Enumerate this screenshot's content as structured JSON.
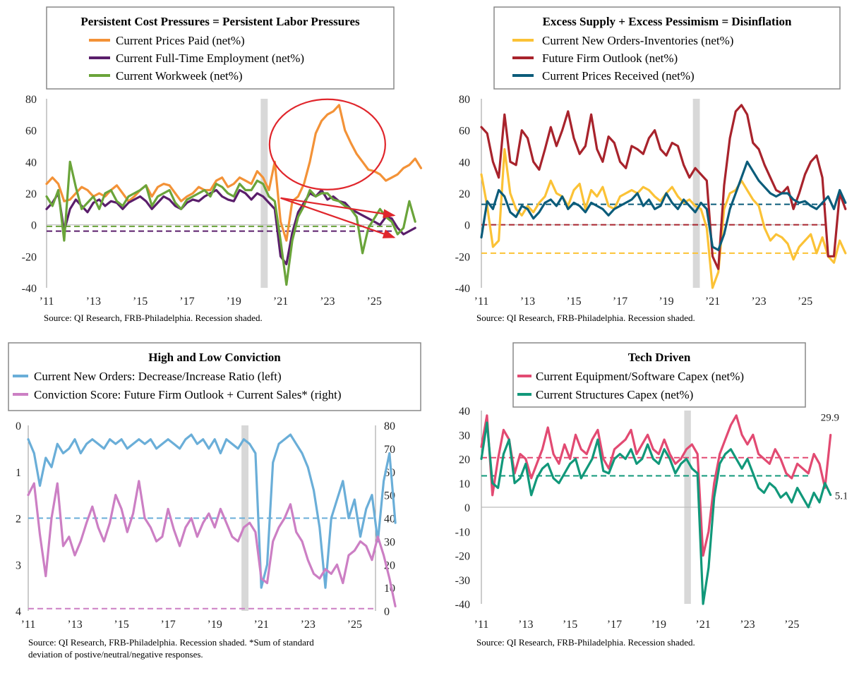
{
  "colors": {
    "orange": "#f39237",
    "purple": "#5a1e6b",
    "green": "#6aa43a",
    "yellow": "#fbc236",
    "darkred": "#a8232c",
    "teal": "#0b5c7a",
    "lightblue": "#6aaed8",
    "pink": "#cc7fc4",
    "crimson": "#e24a72",
    "seagreen": "#11987a",
    "annotation": "#e0262c",
    "recession": "#d8d8d8"
  },
  "chart_data": [
    {
      "id": "labor",
      "type": "line",
      "title": "Persistent Cost Pressures = Persistent Labor Pressures",
      "source": "Source: QI Research, FRB-Philadelphia. Recession shaded.",
      "x_tick_labels": [
        "’11",
        "’13",
        "’15",
        "’17",
        "’19",
        "’21",
        "’23",
        "’25"
      ],
      "x_range": [
        2011.0,
        2025.9
      ],
      "ylim": [
        -40,
        80
      ],
      "y_ticks": [
        -40,
        -20,
        0,
        20,
        40,
        60,
        80
      ],
      "recession": [
        2020.15,
        2020.45
      ],
      "series": [
        {
          "name": "Current Prices Paid (net%)",
          "color": "orange",
          "step": 0.25,
          "values": [
            26,
            30,
            26,
            15,
            16,
            20,
            24,
            22,
            18,
            20,
            18,
            22,
            25,
            20,
            15,
            18,
            22,
            25,
            18,
            24,
            26,
            25,
            20,
            15,
            18,
            20,
            24,
            22,
            22,
            28,
            30,
            24,
            26,
            30,
            28,
            26,
            34,
            30,
            22,
            40,
            2,
            -10,
            15,
            18,
            26,
            40,
            58,
            66,
            70,
            72,
            76,
            60,
            52,
            45,
            40,
            35,
            34,
            32,
            28,
            30,
            32,
            36,
            38,
            42,
            36
          ]
        },
        {
          "name": "Current Full-Time Employment (net%)",
          "color": "purple",
          "step": 0.25,
          "values": [
            10,
            14,
            20,
            -4,
            10,
            16,
            12,
            8,
            14,
            16,
            12,
            15,
            14,
            10,
            14,
            16,
            18,
            15,
            10,
            14,
            18,
            16,
            12,
            10,
            14,
            16,
            15,
            18,
            20,
            22,
            18,
            16,
            15,
            22,
            20,
            16,
            20,
            18,
            14,
            10,
            -20,
            -25,
            -5,
            8,
            14,
            20,
            18,
            22,
            16,
            18,
            15,
            14,
            10,
            8,
            6,
            4,
            2,
            0,
            5,
            4,
            -2,
            -6,
            -4,
            -2
          ]
        },
        {
          "name": "Current Workweek (net%)",
          "color": "green",
          "step": 0.25,
          "values": [
            18,
            12,
            22,
            -10,
            40,
            24,
            10,
            14,
            18,
            10,
            20,
            22,
            15,
            12,
            18,
            20,
            22,
            25,
            12,
            18,
            20,
            22,
            14,
            10,
            16,
            18,
            20,
            22,
            18,
            26,
            24,
            20,
            18,
            26,
            22,
            22,
            28,
            26,
            18,
            15,
            -10,
            -38,
            -10,
            5,
            12,
            22,
            18,
            20,
            20,
            16,
            15,
            12,
            10,
            5,
            -18,
            -2,
            4,
            10,
            5,
            2,
            -6,
            -2,
            15,
            2
          ]
        }
      ],
      "dashed": [
        {
          "series": "Current Workweek (net%)",
          "value": -1,
          "color": "green"
        },
        {
          "series": "Current Full-Time Employment (net%)",
          "value": -4,
          "color": "purple"
        }
      ],
      "annotations": [
        "ellipse around 2021-2025 prices paid",
        "downward arrows 2021-2025"
      ]
    },
    {
      "id": "disinflation",
      "type": "line",
      "title": "Excess Supply + Excess Pessimism = Disinflation",
      "source": "Source: QI Research, FRB-Philadelphia. Recession shaded.",
      "x_tick_labels": [
        "’11",
        "’13",
        "’15",
        "’17",
        "’19",
        "’21",
        "’23",
        "’25"
      ],
      "x_range": [
        2011.0,
        2025.9
      ],
      "ylim": [
        -40,
        80
      ],
      "y_ticks": [
        -40,
        -20,
        0,
        20,
        40,
        60,
        80
      ],
      "recession": [
        2020.15,
        2020.45
      ],
      "series": [
        {
          "name": "Current New Orders-Inventories (net%)",
          "color": "yellow",
          "step": 0.25,
          "values": [
            32,
            12,
            -14,
            -10,
            48,
            20,
            10,
            6,
            12,
            8,
            14,
            18,
            28,
            20,
            18,
            12,
            22,
            26,
            10,
            22,
            18,
            24,
            12,
            10,
            18,
            20,
            22,
            20,
            24,
            22,
            18,
            15,
            20,
            24,
            18,
            14,
            16,
            12,
            10,
            -2,
            -40,
            -30,
            10,
            20,
            22,
            28,
            22,
            16,
            12,
            -2,
            -10,
            -6,
            -8,
            -12,
            -22,
            -14,
            -10,
            -6,
            -18,
            -8,
            -20,
            -24,
            -10,
            -18
          ]
        },
        {
          "name": "Future Firm Outlook (net%)",
          "color": "darkred",
          "step": 0.25,
          "values": [
            62,
            58,
            40,
            30,
            70,
            40,
            38,
            60,
            55,
            40,
            35,
            48,
            62,
            50,
            60,
            72,
            55,
            45,
            50,
            70,
            48,
            40,
            56,
            52,
            40,
            36,
            50,
            48,
            45,
            55,
            60,
            48,
            44,
            52,
            50,
            38,
            30,
            36,
            32,
            28,
            -20,
            -28,
            25,
            55,
            72,
            76,
            70,
            52,
            48,
            38,
            30,
            22,
            20,
            24,
            10,
            20,
            32,
            40,
            44,
            30,
            -20,
            -20,
            20,
            10
          ]
        },
        {
          "name": "Current Prices Received (net%)",
          "color": "teal",
          "step": 0.25,
          "values": [
            -8,
            15,
            10,
            22,
            18,
            8,
            5,
            12,
            10,
            4,
            8,
            14,
            16,
            12,
            18,
            10,
            14,
            12,
            8,
            14,
            12,
            10,
            6,
            10,
            12,
            14,
            16,
            20,
            12,
            16,
            10,
            12,
            20,
            14,
            10,
            16,
            12,
            8,
            14,
            10,
            -14,
            -16,
            -6,
            10,
            20,
            30,
            40,
            34,
            28,
            24,
            20,
            18,
            20,
            20,
            16,
            14,
            15,
            12,
            10,
            14,
            18,
            10,
            22,
            14
          ]
        }
      ],
      "dashed": [
        {
          "series": "Current Prices Received (net%)",
          "value": 13,
          "color": "teal"
        },
        {
          "series": "Future Firm Outlook (net%)",
          "value": 0,
          "color": "darkred"
        },
        {
          "series": "Current New Orders-Inventories (net%)",
          "value": -18,
          "color": "yellow"
        }
      ]
    },
    {
      "id": "conviction",
      "type": "line",
      "title": "High and Low Conviction",
      "source": "Source: QI Research, FRB-Philadelphia. Recession shaded. *Sum of standard",
      "source_line2": "deviation of postive/neutral/negative responses.",
      "x_tick_labels": [
        "’11",
        "’13",
        "’15",
        "’17",
        "’19",
        "’21",
        "’23",
        "’25"
      ],
      "x_range": [
        2011.0,
        2025.9
      ],
      "ylim_left": [
        0,
        4
      ],
      "ylim_left_inverted": true,
      "y_ticks_left": [
        0,
        1,
        2,
        3,
        4
      ],
      "ylim_right": [
        0,
        80
      ],
      "y_ticks_right": [
        0,
        10,
        20,
        30,
        40,
        50,
        60,
        70,
        80
      ],
      "recession": [
        2020.15,
        2020.45
      ],
      "series": [
        {
          "name": "Current New Orders: Decrease/Increase Ratio (left)",
          "color": "lightblue",
          "axis": "left",
          "step": 0.25,
          "values": [
            0.3,
            0.6,
            1.3,
            0.7,
            0.9,
            0.4,
            0.6,
            0.5,
            0.3,
            0.6,
            0.4,
            0.3,
            0.4,
            0.5,
            0.3,
            0.4,
            0.3,
            0.5,
            0.4,
            0.3,
            0.4,
            0.3,
            0.5,
            0.4,
            0.3,
            0.4,
            0.5,
            0.3,
            0.2,
            0.4,
            0.3,
            0.5,
            0.3,
            0.6,
            0.3,
            0.4,
            0.5,
            0.3,
            0.4,
            0.6,
            3.5,
            3.0,
            0.8,
            0.4,
            0.3,
            0.2,
            0.4,
            0.6,
            0.9,
            1.4,
            2.2,
            3.5,
            2.0,
            1.6,
            1.2,
            2.0,
            1.6,
            2.4,
            1.8,
            1.5,
            2.5,
            1.2,
            0.6,
            2.1
          ]
        },
        {
          "name": "Conviction Score: Future Firm Outlook + Current Sales* (right)",
          "color": "pink",
          "axis": "right",
          "step": 0.25,
          "values": [
            50,
            55,
            33,
            15,
            40,
            55,
            28,
            32,
            24,
            30,
            38,
            45,
            36,
            30,
            38,
            50,
            44,
            34,
            42,
            56,
            40,
            36,
            30,
            32,
            44,
            35,
            28,
            36,
            40,
            32,
            38,
            42,
            36,
            44,
            38,
            32,
            30,
            36,
            38,
            34,
            14,
            12,
            30,
            36,
            40,
            46,
            34,
            30,
            22,
            16,
            14,
            18,
            16,
            20,
            12,
            24,
            26,
            30,
            28,
            22,
            32,
            24,
            14,
            2
          ]
        }
      ],
      "dashed": [
        {
          "series": "Current New Orders: Decrease/Increase Ratio (left)",
          "value": 2.0,
          "axis": "left",
          "color": "lightblue"
        },
        {
          "series": "Conviction Score: Future Firm Outlook + Current Sales* (right)",
          "value": 1,
          "axis": "right",
          "color": "pink"
        }
      ]
    },
    {
      "id": "capex",
      "type": "line",
      "title": "Tech Driven",
      "source": "Source: QI Research, FRB-Philadelphia. Recession shaded.",
      "x_tick_labels": [
        "’11",
        "’13",
        "’15",
        "’17",
        "’19",
        "’21",
        "’23",
        "’25"
      ],
      "x_range": [
        2011.0,
        2025.9
      ],
      "ylim": [
        -40,
        40
      ],
      "y_ticks": [
        -40,
        -30,
        -20,
        -10,
        0,
        10,
        20,
        30,
        40
      ],
      "recession": [
        2020.15,
        2020.45
      ],
      "series": [
        {
          "name": "Current Equipment/Software Capex (net%)",
          "color": "crimson",
          "step": 0.25,
          "values": [
            25,
            38,
            5,
            20,
            32,
            28,
            14,
            22,
            20,
            12,
            18,
            24,
            33,
            22,
            18,
            26,
            20,
            30,
            24,
            22,
            28,
            32,
            20,
            16,
            24,
            26,
            28,
            32,
            22,
            26,
            30,
            24,
            22,
            28,
            22,
            18,
            20,
            24,
            26,
            22,
            -20,
            -10,
            10,
            22,
            28,
            34,
            38,
            30,
            26,
            30,
            22,
            20,
            18,
            24,
            20,
            14,
            12,
            18,
            16,
            14,
            22,
            18,
            8,
            29.9
          ]
        },
        {
          "name": "Current Structures Capex (net%)",
          "color": "seagreen",
          "step": 0.25,
          "values": [
            20,
            35,
            10,
            8,
            22,
            28,
            10,
            12,
            18,
            5,
            12,
            16,
            18,
            12,
            10,
            14,
            18,
            20,
            12,
            16,
            20,
            28,
            15,
            14,
            20,
            22,
            20,
            24,
            18,
            20,
            26,
            20,
            18,
            24,
            20,
            14,
            18,
            20,
            16,
            14,
            -40,
            -25,
            4,
            18,
            22,
            24,
            20,
            16,
            20,
            14,
            8,
            6,
            10,
            8,
            4,
            6,
            2,
            8,
            4,
            0,
            6,
            2,
            10,
            5.1
          ]
        }
      ],
      "dashed": [
        {
          "series": "Current Equipment/Software Capex (net%)",
          "value": 20.5,
          "color": "crimson"
        },
        {
          "series": "Current Structures Capex (net%)",
          "value": 13,
          "color": "seagreen"
        }
      ],
      "end_labels": [
        {
          "series": "Current Equipment/Software Capex (net%)",
          "text": "29.9"
        },
        {
          "series": "Current Structures Capex (net%)",
          "text": "5.1"
        }
      ]
    }
  ]
}
